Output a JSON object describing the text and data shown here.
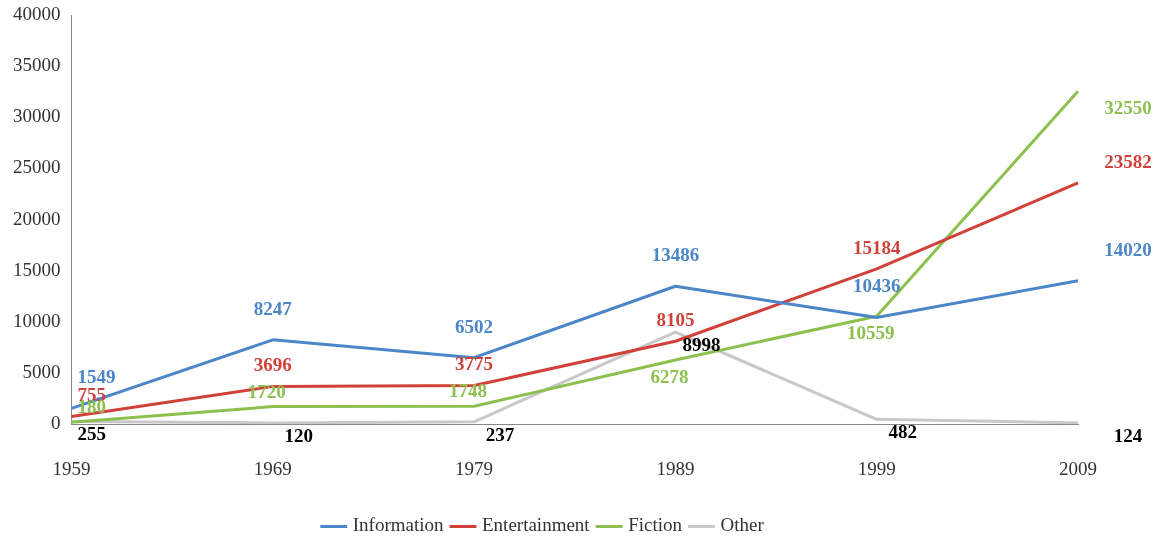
{
  "chart_data": {
    "type": "line",
    "categories": [
      "1959",
      "1969",
      "1979",
      "1989",
      "1999",
      "2009"
    ],
    "series": [
      {
        "name": "Information",
        "color": "#4a86c8",
        "values": [
          1549,
          8247,
          6502,
          13486,
          10436,
          14020
        ]
      },
      {
        "name": "Entertainment",
        "color": "#d0413a",
        "values": [
          755,
          3696,
          3775,
          8105,
          15184,
          23582
        ]
      },
      {
        "name": "Fiction",
        "color": "#8dc04f",
        "values": [
          180,
          1720,
          1748,
          6278,
          10559,
          32550
        ]
      },
      {
        "name": "Other",
        "color": "#c8c8c8",
        "values": [
          255,
          120,
          237,
          8998,
          482,
          124
        ]
      }
    ],
    "ylim": [
      0,
      40000
    ],
    "yticks": [
      0,
      5000,
      10000,
      15000,
      20000,
      25000,
      30000,
      35000,
      40000
    ],
    "grid": false,
    "legend": "bottom",
    "marker": "none",
    "line_style": "solid",
    "data_labels": true
  }
}
